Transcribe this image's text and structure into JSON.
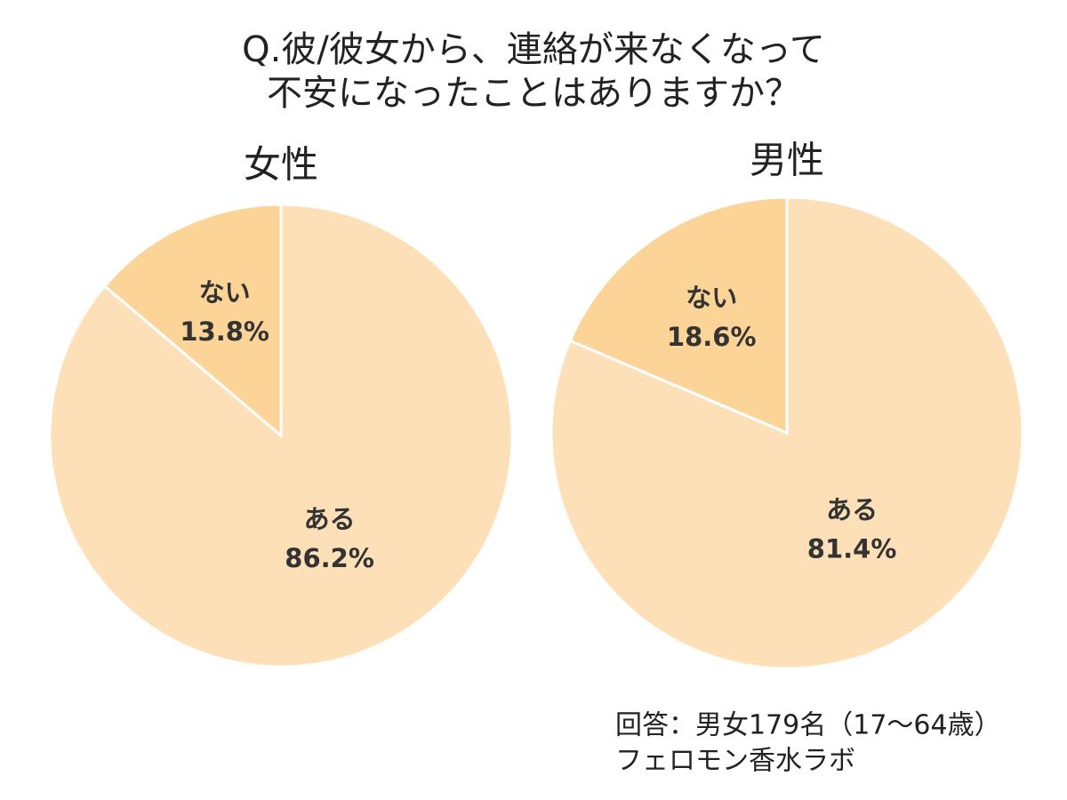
{
  "title": [
    "Q.彼/彼女から、連絡が来なくなって",
    "不安になったことはありますか？"
  ],
  "source": [
    "回答：男女179名（17～64歳）",
    "フェロモン香水ラボ"
  ],
  "chart_data": [
    {
      "type": "pie",
      "title": "女性",
      "categories": [
        "ある",
        "ない"
      ],
      "values": [
        86.2,
        13.8
      ],
      "value_labels": [
        "86.2%",
        "13.8%"
      ],
      "colors": [
        "#fde0b8",
        "#fcd497"
      ]
    },
    {
      "type": "pie",
      "title": "男性",
      "categories": [
        "ある",
        "ない"
      ],
      "values": [
        81.4,
        18.6
      ],
      "value_labels": [
        "81.4%",
        "18.6%"
      ],
      "colors": [
        "#fde0b8",
        "#fcd497"
      ]
    }
  ]
}
